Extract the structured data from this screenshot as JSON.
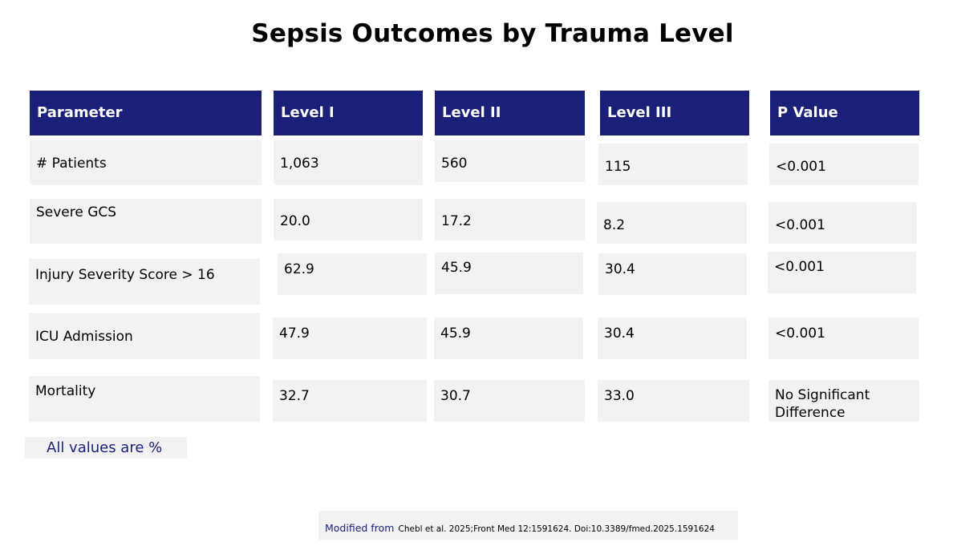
{
  "title": "Sepsis Outcomes by Trauma Level",
  "table": {
    "headers": [
      "Parameter",
      "Level I",
      "Level II",
      "Level III",
      "P Value"
    ],
    "rows": [
      [
        "# Patients",
        "1,063",
        "560",
        "115",
        "<0.001"
      ],
      [
        "Severe GCS",
        "20.0",
        "17.2",
        "8.2",
        "<0.001"
      ],
      [
        "Injury Severity Score > 16",
        "62.9",
        "45.9",
        "30.4",
        "<0.001"
      ],
      [
        "ICU Admission",
        "47.9",
        "45.9",
        "30.4",
        "<0.001"
      ],
      [
        "Mortality",
        "32.7",
        "30.7",
        "33.0",
        "No Significant Difference"
      ]
    ]
  },
  "note": "All values are %",
  "citation": {
    "prefix": "Modified from",
    "reference": "Chebl et al. 2025;Front Med 12:1591624. Doi:10.3389/fmed.2025.1591624"
  },
  "colors": {
    "header_bg": "#1a1f78",
    "cell_bg": "#f2f2f2",
    "note_text": "#1a1f78"
  }
}
